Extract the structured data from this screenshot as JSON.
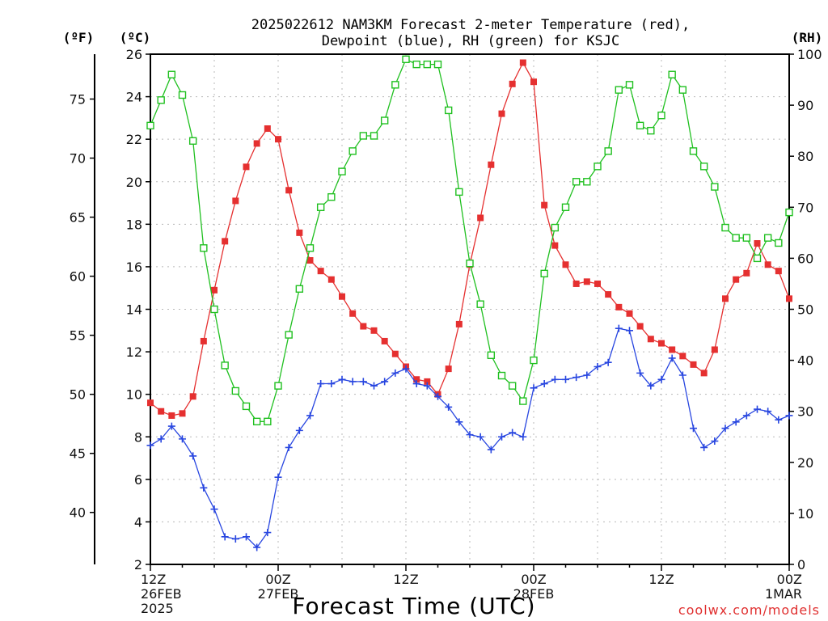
{
  "chart_data": {
    "type": "line",
    "title_line1": "2025022612 NAM3KM Forecast 2-meter Temperature (red),",
    "title_line2": "Dewpoint (blue), RH (green) for KSJC",
    "unit_f": "(ºF)",
    "unit_c": "(ºC)",
    "unit_rh": "(RH)",
    "xlabel": "Forecast Time (UTC)",
    "credit": "coolwx.com/models",
    "x_hours_range": [
      0,
      60
    ],
    "celsius_range": [
      2,
      26
    ],
    "fahrenheit_range": [
      35.6,
      78.8
    ],
    "rh_range": [
      0,
      100
    ],
    "grid": true,
    "celsius_ticks": [
      "2",
      "4",
      "6",
      "8",
      "10",
      "12",
      "14",
      "16",
      "18",
      "20",
      "22",
      "24",
      "26"
    ],
    "fahrenheit_ticks": [
      "40",
      "45",
      "50",
      "55",
      "60",
      "65",
      "70",
      "75"
    ],
    "rh_ticks": [
      "0",
      "10",
      "20",
      "30",
      "40",
      "50",
      "60",
      "70",
      "80",
      "90",
      "100"
    ],
    "x_ticks": [
      {
        "hour": 0,
        "line1": "12Z",
        "line2": "26FEB",
        "line3": "2025"
      },
      {
        "hour": 12,
        "line1": "00Z",
        "line2": "27FEB",
        "line3": ""
      },
      {
        "hour": 24,
        "line1": "12Z",
        "line2": "",
        "line3": ""
      },
      {
        "hour": 36,
        "line1": "00Z",
        "line2": "28FEB",
        "line3": ""
      },
      {
        "hour": 48,
        "line1": "12Z",
        "line2": "",
        "line3": ""
      },
      {
        "hour": 60,
        "line1": "00Z",
        "line2": "1MAR",
        "line3": ""
      }
    ],
    "series": [
      {
        "name": "Temperature",
        "color": "#e53030",
        "marker": "filled-square",
        "axis": "celsius",
        "points": [
          [
            0,
            9.6
          ],
          [
            1,
            9.2
          ],
          [
            2,
            9.0
          ],
          [
            3,
            9.1
          ],
          [
            4,
            9.9
          ],
          [
            5,
            12.5
          ],
          [
            6,
            14.9
          ],
          [
            7,
            17.2
          ],
          [
            8,
            19.1
          ],
          [
            9,
            20.7
          ],
          [
            10,
            21.8
          ],
          [
            11,
            22.5
          ],
          [
            12,
            22.0
          ],
          [
            13,
            19.6
          ],
          [
            14,
            17.6
          ],
          [
            15,
            16.3
          ],
          [
            16,
            15.8
          ],
          [
            17,
            15.4
          ],
          [
            18,
            14.6
          ],
          [
            19,
            13.8
          ],
          [
            20,
            13.2
          ],
          [
            21,
            13.0
          ],
          [
            22,
            12.5
          ],
          [
            23,
            11.9
          ],
          [
            24,
            11.3
          ],
          [
            25,
            10.7
          ],
          [
            26,
            10.6
          ],
          [
            27,
            10.0
          ],
          [
            28,
            11.2
          ],
          [
            29,
            13.3
          ],
          [
            30,
            16.1
          ],
          [
            31,
            18.3
          ],
          [
            32,
            20.8
          ],
          [
            33,
            23.2
          ],
          [
            34,
            24.6
          ],
          [
            35,
            25.6
          ],
          [
            36,
            24.7
          ],
          [
            37,
            18.9
          ],
          [
            38,
            17.0
          ],
          [
            39,
            16.1
          ],
          [
            40,
            15.2
          ],
          [
            41,
            15.3
          ],
          [
            42,
            15.2
          ],
          [
            43,
            14.7
          ],
          [
            44,
            14.1
          ],
          [
            45,
            13.8
          ],
          [
            46,
            13.2
          ],
          [
            47,
            12.6
          ],
          [
            48,
            12.4
          ],
          [
            49,
            12.1
          ],
          [
            50,
            11.8
          ],
          [
            51,
            11.4
          ],
          [
            52,
            11.0
          ],
          [
            53,
            12.1
          ],
          [
            54,
            14.5
          ],
          [
            55,
            15.4
          ],
          [
            56,
            15.7
          ],
          [
            57,
            17.1
          ],
          [
            58,
            16.1
          ],
          [
            59,
            15.8
          ],
          [
            60,
            14.5
          ]
        ]
      },
      {
        "name": "Dewpoint",
        "color": "#2846e0",
        "marker": "plus",
        "axis": "celsius",
        "points": [
          [
            0,
            7.6
          ],
          [
            1,
            7.9
          ],
          [
            2,
            8.5
          ],
          [
            3,
            7.9
          ],
          [
            4,
            7.1
          ],
          [
            5,
            5.6
          ],
          [
            6,
            4.6
          ],
          [
            7,
            3.3
          ],
          [
            8,
            3.2
          ],
          [
            9,
            3.3
          ],
          [
            10,
            2.8
          ],
          [
            11,
            3.5
          ],
          [
            12,
            6.1
          ],
          [
            13,
            7.5
          ],
          [
            14,
            8.3
          ],
          [
            15,
            9.0
          ],
          [
            16,
            10.5
          ],
          [
            17,
            10.5
          ],
          [
            18,
            10.7
          ],
          [
            19,
            10.6
          ],
          [
            20,
            10.6
          ],
          [
            21,
            10.4
          ],
          [
            22,
            10.6
          ],
          [
            23,
            11.0
          ],
          [
            24,
            11.2
          ],
          [
            25,
            10.5
          ],
          [
            26,
            10.4
          ],
          [
            27,
            9.9
          ],
          [
            28,
            9.4
          ],
          [
            29,
            8.7
          ],
          [
            30,
            8.1
          ],
          [
            31,
            8.0
          ],
          [
            32,
            7.4
          ],
          [
            33,
            8.0
          ],
          [
            34,
            8.2
          ],
          [
            35,
            8.0
          ],
          [
            36,
            10.3
          ],
          [
            37,
            10.5
          ],
          [
            38,
            10.7
          ],
          [
            39,
            10.7
          ],
          [
            40,
            10.8
          ],
          [
            41,
            10.9
          ],
          [
            42,
            11.3
          ],
          [
            43,
            11.5
          ],
          [
            44,
            13.1
          ],
          [
            45,
            13.0
          ],
          [
            46,
            11.0
          ],
          [
            47,
            10.4
          ],
          [
            48,
            10.7
          ],
          [
            49,
            11.7
          ],
          [
            50,
            10.9
          ],
          [
            51,
            8.4
          ],
          [
            52,
            7.5
          ],
          [
            53,
            7.8
          ],
          [
            54,
            8.4
          ],
          [
            55,
            8.7
          ],
          [
            56,
            9.0
          ],
          [
            57,
            9.3
          ],
          [
            58,
            9.2
          ],
          [
            59,
            8.8
          ],
          [
            60,
            9.0
          ]
        ]
      },
      {
        "name": "RH",
        "color": "#20c020",
        "marker": "open-square",
        "axis": "rh",
        "points": [
          [
            0,
            86
          ],
          [
            1,
            91
          ],
          [
            2,
            96
          ],
          [
            3,
            92
          ],
          [
            4,
            83
          ],
          [
            5,
            62
          ],
          [
            6,
            50
          ],
          [
            7,
            39
          ],
          [
            8,
            34
          ],
          [
            9,
            31
          ],
          [
            10,
            28
          ],
          [
            11,
            28
          ],
          [
            12,
            35
          ],
          [
            13,
            45
          ],
          [
            14,
            54
          ],
          [
            15,
            62
          ],
          [
            16,
            70
          ],
          [
            17,
            72
          ],
          [
            18,
            77
          ],
          [
            19,
            81
          ],
          [
            20,
            84
          ],
          [
            21,
            84
          ],
          [
            22,
            87
          ],
          [
            23,
            94
          ],
          [
            24,
            99
          ],
          [
            25,
            98
          ],
          [
            26,
            98
          ],
          [
            27,
            98
          ],
          [
            28,
            89
          ],
          [
            29,
            73
          ],
          [
            30,
            59
          ],
          [
            31,
            51
          ],
          [
            32,
            41
          ],
          [
            33,
            37
          ],
          [
            34,
            35
          ],
          [
            35,
            32
          ],
          [
            36,
            40
          ],
          [
            37,
            57
          ],
          [
            38,
            66
          ],
          [
            39,
            70
          ],
          [
            40,
            75
          ],
          [
            41,
            75
          ],
          [
            42,
            78
          ],
          [
            43,
            81
          ],
          [
            44,
            93
          ],
          [
            45,
            94
          ],
          [
            46,
            86
          ],
          [
            47,
            85
          ],
          [
            48,
            88
          ],
          [
            49,
            96
          ],
          [
            50,
            93
          ],
          [
            51,
            81
          ],
          [
            52,
            78
          ],
          [
            53,
            74
          ],
          [
            54,
            66
          ],
          [
            55,
            64
          ],
          [
            56,
            64
          ],
          [
            57,
            60
          ],
          [
            58,
            64
          ],
          [
            59,
            63
          ],
          [
            60,
            69
          ]
        ]
      }
    ]
  }
}
